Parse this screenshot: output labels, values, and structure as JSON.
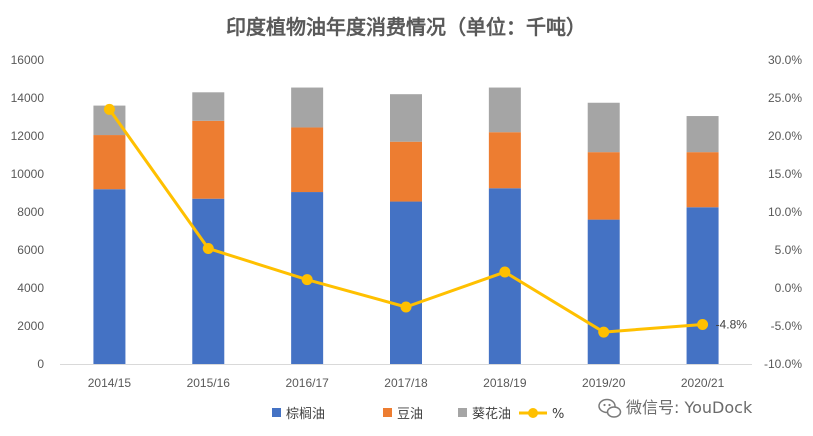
{
  "chart_data": {
    "type": "bar",
    "title": "印度植物油年度消费情况（单位：千吨）",
    "categories": [
      "2014/15",
      "2015/16",
      "2016/17",
      "2017/18",
      "2018/19",
      "2019/20",
      "2020/21"
    ],
    "stacked": true,
    "series": [
      {
        "name": "棕榈油",
        "type": "bar",
        "axis": "left",
        "color": "#4472C4",
        "values": [
          9200,
          8700,
          9050,
          8550,
          9250,
          7600,
          8250
        ]
      },
      {
        "name": "豆油",
        "type": "bar",
        "axis": "left",
        "color": "#ED7D31",
        "values": [
          2850,
          4100,
          3400,
          3150,
          2950,
          3550,
          2900
        ]
      },
      {
        "name": "葵花油",
        "type": "bar",
        "axis": "left",
        "color": "#A5A5A5",
        "values": [
          1550,
          1500,
          2100,
          2500,
          2350,
          2600,
          1900
        ]
      },
      {
        "name": "%",
        "type": "line",
        "axis": "right",
        "color": "#FFC000",
        "values": [
          23.5,
          5.2,
          1.1,
          -2.5,
          2.1,
          -5.8,
          -4.8
        ]
      }
    ],
    "y_left": {
      "min": 0,
      "max": 16000,
      "ticks": [
        "0",
        "2000",
        "4000",
        "6000",
        "8000",
        "10000",
        "12000",
        "14000",
        "16000"
      ]
    },
    "y_right": {
      "min": -10,
      "max": 30,
      "ticks": [
        "-10.0%",
        "-5.0%",
        "0.0%",
        "5.0%",
        "10.0%",
        "15.0%",
        "20.0%",
        "25.0%",
        "30.0%"
      ]
    },
    "data_labels": [
      {
        "series": "%",
        "index": 6,
        "text": "-4.8%"
      }
    ],
    "grid": false,
    "legend": "bottom"
  },
  "watermark": {
    "text": "微信号: YouDock",
    "icon": "wechat-icon"
  }
}
